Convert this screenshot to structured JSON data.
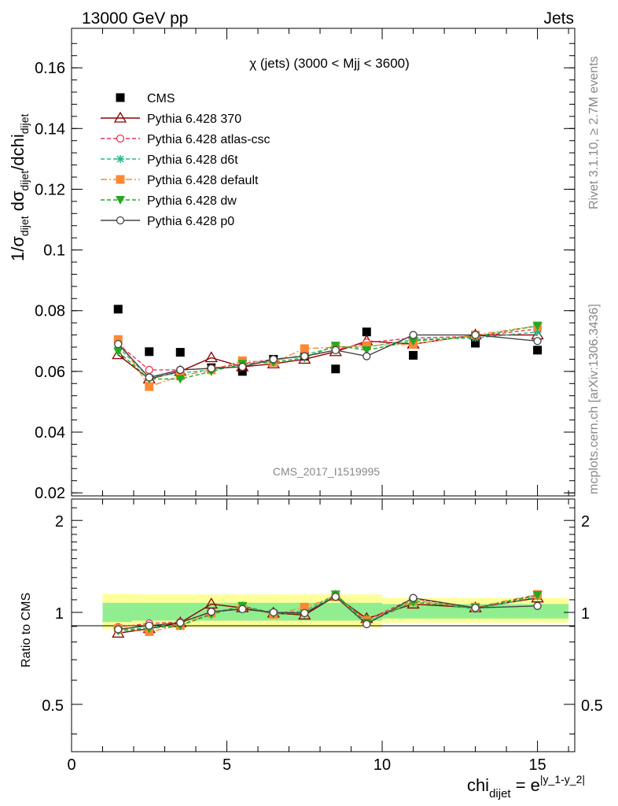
{
  "header": {
    "left_title": "13000 GeV pp",
    "right_title": "Jets"
  },
  "side_labels": {
    "rivet": "Rivet 3.1.10, ≥ 2.7M events",
    "mcplots": "mcplots.cern.ch [arXiv:1306.3436]"
  },
  "chart_data": [
    {
      "type": "scatter",
      "panel": "main",
      "title": "χ (jets) (3000 < Mjj < 3600)",
      "watermark": "CMS_2017_I1519995",
      "ylabel": "1/σ_dijet dσ_dijet/dchi_dijet",
      "xlim": [
        0,
        16.2
      ],
      "ylim": [
        0.019,
        0.173
      ],
      "yticks": [
        "0.02",
        "0.04",
        "0.06",
        "0.08",
        "0.1",
        "0.12",
        "0.14",
        "0.16"
      ],
      "legend_position": "top-left",
      "x": [
        1.5,
        2.5,
        3.5,
        4.5,
        5.5,
        6.5,
        7.5,
        8.5,
        9.5,
        11.0,
        13.0,
        15.0
      ],
      "series": [
        {
          "name": "CMS",
          "color": "#000000",
          "marker": "square",
          "line": "none",
          "values": [
            0.0805,
            0.0665,
            0.0663,
            0.0612,
            0.06,
            0.064,
            0.065,
            0.0608,
            0.073,
            0.0653,
            0.0693,
            0.067
          ]
        },
        {
          "name": "Pythia 6.428 370",
          "color": "#8b0000",
          "marker": "triangle-open",
          "line": "solid",
          "values": [
            0.0655,
            0.0575,
            0.06,
            0.0645,
            0.0615,
            0.0625,
            0.064,
            0.0665,
            0.07,
            0.069,
            0.072,
            0.072
          ]
        },
        {
          "name": "Pythia 6.428 atlas-csc",
          "color": "#ee3355",
          "marker": "circle-open",
          "line": "dashed",
          "values": [
            0.069,
            0.0605,
            0.0605,
            0.061,
            0.0625,
            0.064,
            0.065,
            0.067,
            0.0695,
            0.071,
            0.0715,
            0.074
          ]
        },
        {
          "name": "Pythia 6.428 d6t",
          "color": "#22bb88",
          "marker": "asterisk",
          "line": "dashed",
          "values": [
            0.068,
            0.058,
            0.0595,
            0.0605,
            0.062,
            0.0635,
            0.0655,
            0.068,
            0.068,
            0.0705,
            0.071,
            0.073
          ]
        },
        {
          "name": "Pythia 6.428 default",
          "color": "#ff8833",
          "marker": "square",
          "line": "dashdot",
          "values": [
            0.0705,
            0.055,
            0.0585,
            0.0605,
            0.0635,
            0.063,
            0.0675,
            0.068,
            0.0685,
            0.069,
            0.072,
            0.075
          ]
        },
        {
          "name": "Pythia 6.428 dw",
          "color": "#22aa22",
          "marker": "triangle-down",
          "line": "dashed",
          "values": [
            0.0665,
            0.0575,
            0.0575,
            0.06,
            0.0625,
            0.063,
            0.0645,
            0.0685,
            0.067,
            0.07,
            0.0715,
            0.075
          ]
        },
        {
          "name": "Pythia 6.428 p0",
          "color": "#444444",
          "marker": "circle-open",
          "line": "solid",
          "values": [
            0.069,
            0.058,
            0.0605,
            0.061,
            0.0615,
            0.064,
            0.065,
            0.067,
            0.065,
            0.072,
            0.072,
            0.07
          ]
        }
      ]
    },
    {
      "type": "scatter",
      "panel": "ratio",
      "ylabel": "Ratio to CMS",
      "xlabel": "chi_dijet = e^|y_1-y_2|",
      "xticks": [
        "0",
        "5",
        "10",
        "15"
      ],
      "yticks": [
        "0.5",
        "1",
        "2"
      ],
      "ylog": true,
      "xlim": [
        0,
        16.2
      ],
      "ylim": [
        0.35,
        2.35
      ],
      "reference_line": 1,
      "bands": {
        "green": {
          "color": "#90ee90",
          "segments": [
            [
              1.0,
              1.95,
              0.93,
              1.075
            ],
            [
              1.95,
              10.0,
              0.94,
              1.075
            ],
            [
              10.0,
              16.0,
              0.955,
              1.065
            ]
          ]
        },
        "yellow": {
          "color": "#ffff99",
          "segments": [
            [
              1.0,
              1.95,
              0.88,
              1.15
            ],
            [
              1.95,
              10.0,
              0.89,
              1.145
            ],
            [
              10.0,
              16.0,
              0.925,
              1.115
            ]
          ]
        }
      },
      "x": [
        1.5,
        2.5,
        3.5,
        4.5,
        5.5,
        6.5,
        7.5,
        8.5,
        9.5,
        11.0,
        13.0,
        15.0
      ],
      "series": [
        {
          "name": "Pythia 6.428 370",
          "values": [
            0.855,
            0.885,
            0.925,
            1.065,
            1.035,
            0.995,
            0.98,
            1.13,
            0.955,
            1.065,
            1.035,
            1.115
          ]
        },
        {
          "name": "Pythia 6.428 atlas-csc",
          "values": [
            0.895,
            0.92,
            0.93,
            1.0,
            1.04,
            1.0,
            0.995,
            1.125,
            0.945,
            1.11,
            1.03,
            1.135
          ]
        },
        {
          "name": "Pythia 6.428 d6t",
          "values": [
            0.875,
            0.89,
            0.91,
            0.99,
            1.05,
            0.995,
            1.01,
            1.145,
            0.935,
            1.095,
            1.025,
            1.125
          ]
        },
        {
          "name": "Pythia 6.428 default",
          "values": [
            0.885,
            0.865,
            0.905,
            0.995,
            1.04,
            0.985,
            1.04,
            1.125,
            0.94,
            1.085,
            1.04,
            1.145
          ]
        },
        {
          "name": "Pythia 6.428 dw",
          "values": [
            0.87,
            0.885,
            0.905,
            0.985,
            1.05,
            0.99,
            0.99,
            1.145,
            0.925,
            1.08,
            1.035,
            1.14
          ]
        },
        {
          "name": "Pythia 6.428 p0",
          "values": [
            0.88,
            0.905,
            0.925,
            1.005,
            1.025,
            1.0,
            0.995,
            1.125,
            0.915,
            1.115,
            1.035,
            1.05
          ]
        }
      ]
    }
  ]
}
